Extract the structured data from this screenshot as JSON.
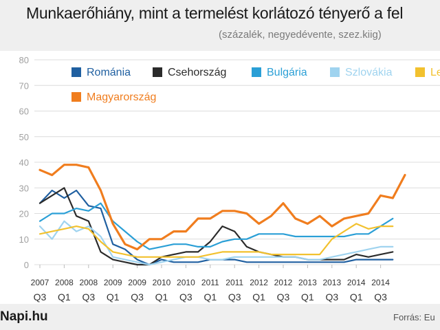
{
  "header": {
    "title": "Munkaerőhiány, mint a termelést korlátozó tényerő a fel",
    "subtitle": "(százalék, negyedévente, szez.kiig)"
  },
  "footer": {
    "logo_text": "Napi.hu",
    "source": "Forrás:  Eu"
  },
  "chart_data": {
    "type": "line",
    "title": "Munkaerőhiány, mint a termelést korlátozó tényerő a fel",
    "subtitle": "(százalék, negyedévente, szez.kiig)",
    "ylim": [
      0,
      80
    ],
    "yticks": [
      0,
      10,
      20,
      30,
      40,
      50,
      60,
      70,
      80
    ],
    "grid": true,
    "legend_position": "top",
    "x": [
      "2007 Q3",
      "2007 Q4",
      "2008 Q1",
      "2008 Q2",
      "2008 Q3",
      "2008 Q4",
      "2009 Q1",
      "2009 Q2",
      "2009 Q3",
      "2009 Q4",
      "2010 Q1",
      "2010 Q2",
      "2010 Q3",
      "2010 Q4",
      "2011 Q1",
      "2011 Q2",
      "2011 Q3",
      "2011 Q4",
      "2012 Q1",
      "2012 Q2",
      "2012 Q3",
      "2012 Q4",
      "2013 Q1",
      "2013 Q2",
      "2013 Q3",
      "2013 Q4",
      "2014 Q1",
      "2014 Q2",
      "2014 Q3",
      "2014 Q4"
    ],
    "xtick_labels": [
      {
        "year": "2007",
        "q": "Q3"
      },
      {
        "year": "2008",
        "q": "Q1"
      },
      {
        "year": "2008",
        "q": "Q3"
      },
      {
        "year": "2009",
        "q": "Q1"
      },
      {
        "year": "2009",
        "q": "Q3"
      },
      {
        "year": "2010",
        "q": "Q1"
      },
      {
        "year": "2010",
        "q": "Q3"
      },
      {
        "year": "2011",
        "q": "Q1"
      },
      {
        "year": "2011",
        "q": "Q3"
      },
      {
        "year": "2012",
        "q": "Q1"
      },
      {
        "year": "2012",
        "q": "Q3"
      },
      {
        "year": "2013",
        "q": "Q1"
      },
      {
        "year": "2013",
        "q": "Q3"
      },
      {
        "year": "2014",
        "q": "Q1"
      },
      {
        "year": "2014",
        "q": "Q3"
      }
    ],
    "series": [
      {
        "name": "Románia",
        "color": "#1f5fa0",
        "values": [
          24,
          29,
          26,
          29,
          23,
          22,
          8,
          6,
          2,
          0,
          2,
          1,
          1,
          1,
          2,
          2,
          2,
          1,
          1,
          1,
          1,
          1,
          1,
          1,
          1,
          1,
          2,
          2,
          2,
          2
        ]
      },
      {
        "name": "Csehország",
        "color": "#2b2b2b",
        "values": [
          24,
          27,
          30,
          19,
          17,
          5,
          2,
          1,
          0,
          0,
          3,
          4,
          5,
          5,
          9,
          15,
          13,
          7,
          5,
          4,
          3,
          3,
          2,
          2,
          2,
          2,
          4,
          3,
          4,
          5
        ]
      },
      {
        "name": "Bulgária",
        "color": "#2a9fd6",
        "values": [
          17,
          20,
          20,
          22,
          21,
          24,
          17,
          13,
          9,
          6,
          7,
          8,
          8,
          7,
          7,
          9,
          10,
          10,
          12,
          12,
          12,
          11,
          11,
          11,
          11,
          11,
          12,
          12,
          15,
          18
        ]
      },
      {
        "name": "Szlovákia",
        "color": "#9fd3ef",
        "values": [
          15,
          10,
          17,
          13,
          15,
          11,
          3,
          2,
          1,
          0,
          1,
          2,
          3,
          3,
          2,
          2,
          3,
          3,
          3,
          3,
          3,
          3,
          2,
          2,
          3,
          4,
          5,
          6,
          7,
          7
        ]
      },
      {
        "name": "Lengyelország",
        "color": "#f2c12e",
        "values": [
          12,
          13,
          14,
          15,
          14,
          9,
          5,
          4,
          3,
          3,
          3,
          3,
          3,
          3,
          4,
          5,
          5,
          5,
          5,
          4,
          4,
          4,
          4,
          4,
          10,
          13,
          16,
          14,
          15,
          15
        ]
      },
      {
        "name": "Magyarország",
        "color": "#f07d1e",
        "values": [
          37,
          35,
          39,
          39,
          38,
          29,
          16,
          8,
          6,
          10,
          10,
          13,
          13,
          18,
          18,
          21,
          21,
          20,
          16,
          19,
          24,
          18,
          16,
          19,
          15,
          18,
          19,
          20,
          27,
          26
        ]
      }
    ],
    "legend_extra_point": {
      "series": "Magyarország",
      "x_index": 30,
      "value": 35
    }
  }
}
